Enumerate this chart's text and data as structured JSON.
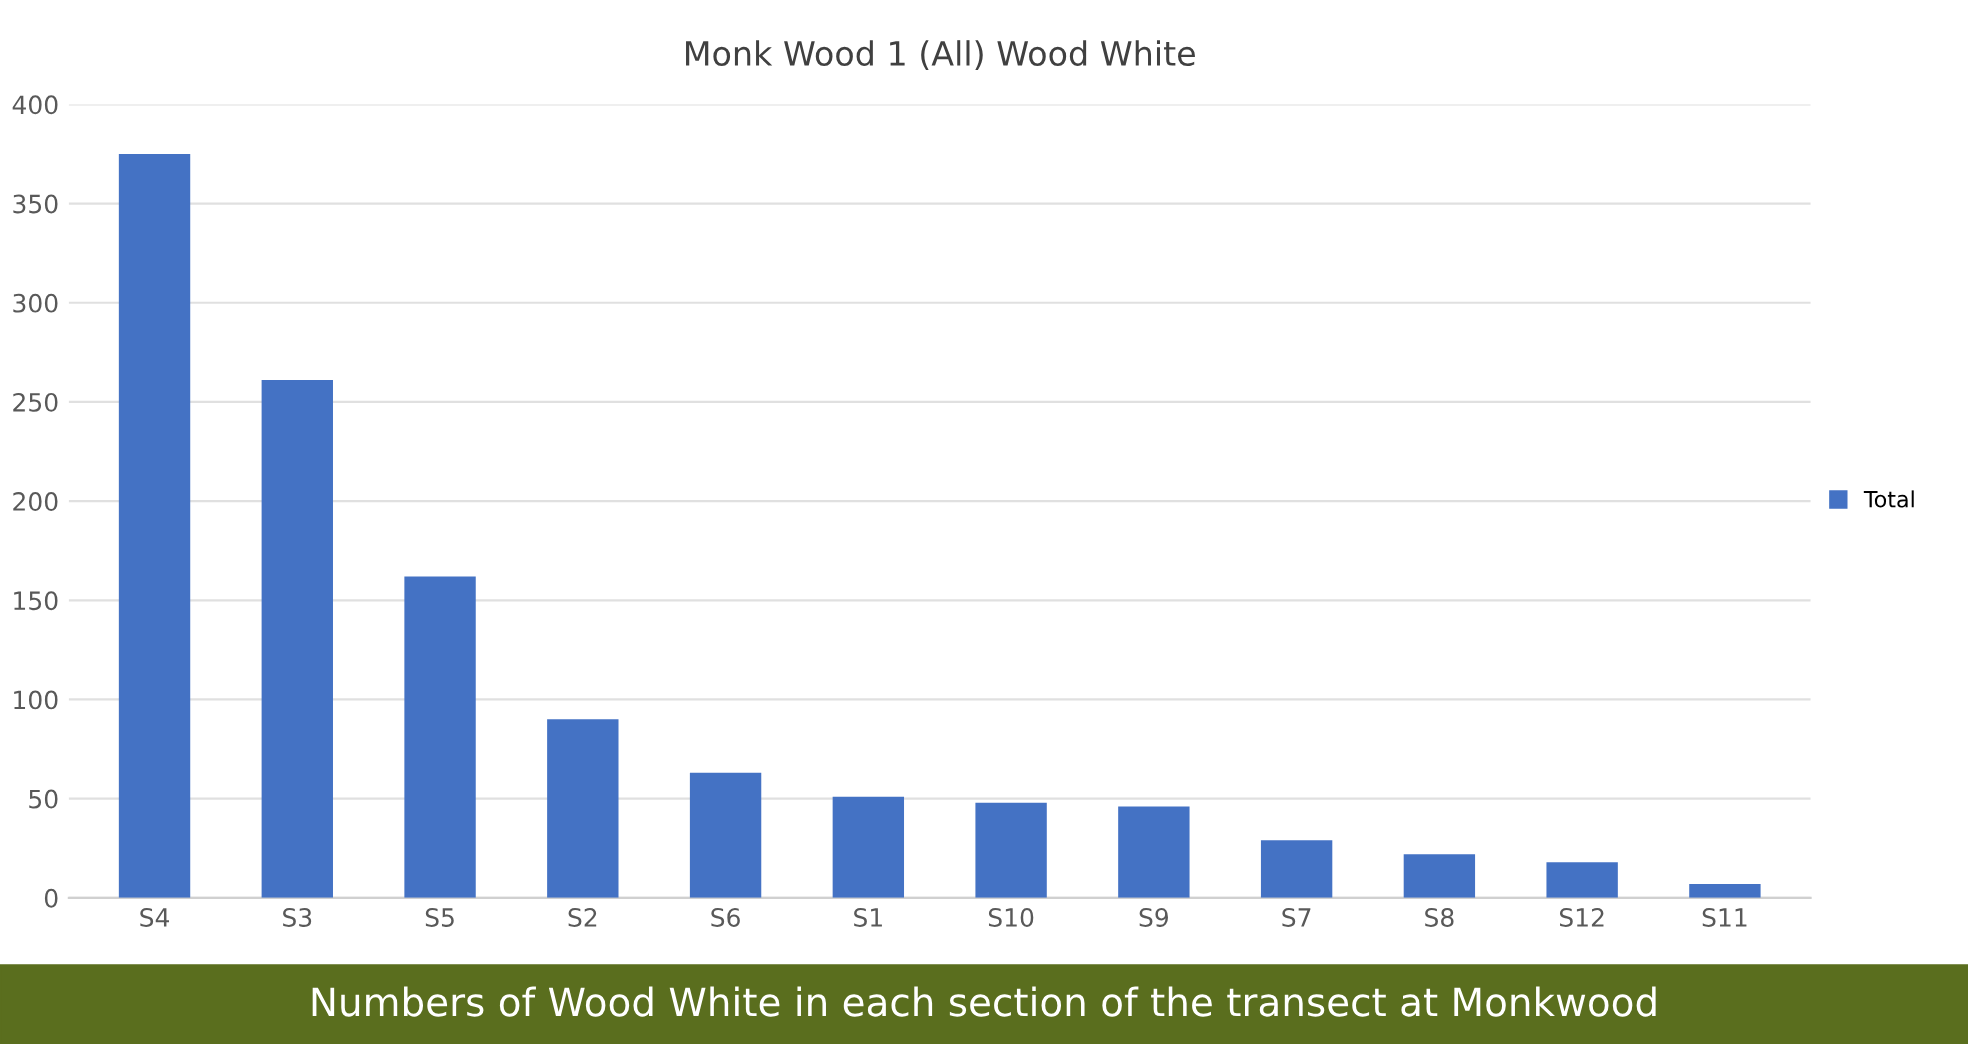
{
  "chart_data": {
    "type": "bar",
    "title": "Monk Wood 1 (All) Wood White",
    "categories": [
      "S4",
      "S3",
      "S5",
      "S2",
      "S6",
      "S1",
      "S10",
      "S9",
      "S7",
      "S8",
      "S12",
      "S11"
    ],
    "series": [
      {
        "name": "Total",
        "color": "#4472c4",
        "values": [
          375,
          261,
          162,
          90,
          63,
          51,
          48,
          46,
          29,
          22,
          18,
          7
        ]
      }
    ],
    "ylim": [
      0,
      400
    ],
    "yticks": [
      0,
      50,
      100,
      150,
      200,
      250,
      300,
      350,
      400
    ],
    "grid": "y",
    "legend": "right",
    "annotations": [
      "Numbers of Wood White in each section of the transect at Monkwood"
    ]
  }
}
